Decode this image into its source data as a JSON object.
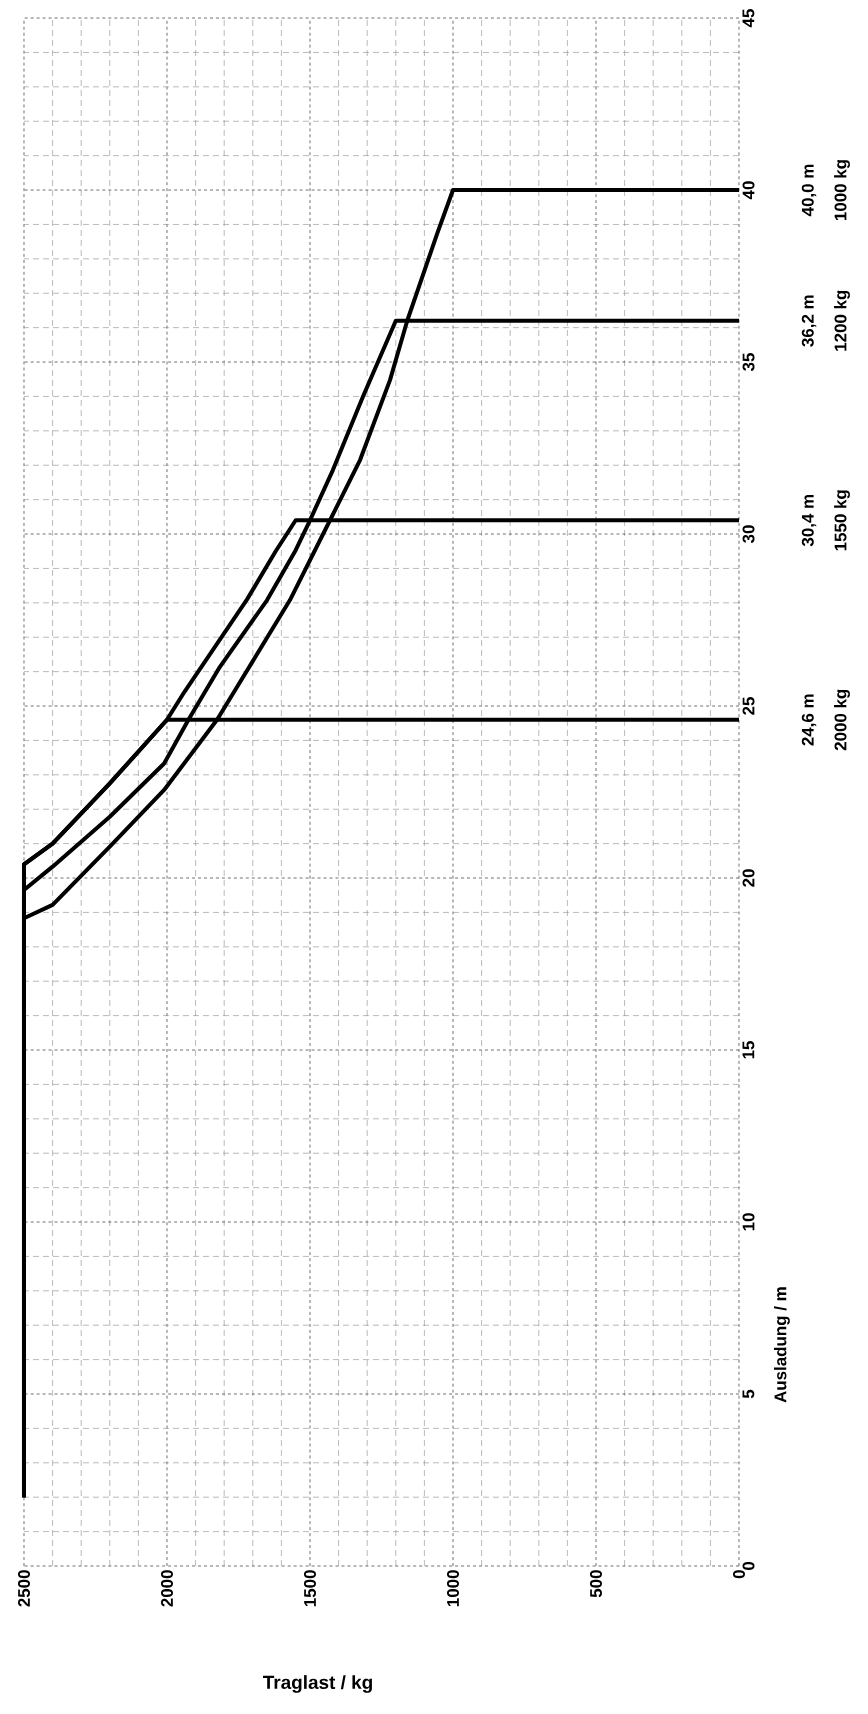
{
  "chart_data": {
    "type": "line",
    "xlabel": "Traglast / kg",
    "ylabel": "Ausladung / m",
    "xlim": [
      2500,
      0
    ],
    "xticks": [
      2500,
      2000,
      1500,
      1000,
      500,
      0
    ],
    "ylim": [
      0,
      45
    ],
    "yticks": [
      0,
      5,
      10,
      15,
      20,
      25,
      30,
      35,
      40,
      45
    ],
    "grid": true,
    "marker": "none",
    "line_style": "solid",
    "series": [
      {
        "name": "24,6 m",
        "color": "#000000",
        "values": [
          2.0,
          20.4,
          21.0,
          22.75,
          24.6,
          24.6
        ],
        "x": [
          2500,
          2500,
          2400,
          2200,
          2000,
          0
        ]
      },
      {
        "name": "30,4 m",
        "color": "#000000",
        "values": [
          2.0,
          20.4,
          21.0,
          22.75,
          24.6,
          25.4,
          28.1,
          29.5,
          30.4,
          30.4
        ],
        "x": [
          2500,
          2500,
          2400,
          2200,
          2000,
          1940,
          1720,
          1620,
          1550,
          0
        ]
      },
      {
        "name": "36,2 m",
        "color": "#000000",
        "values": [
          2.0,
          19.65,
          20.33,
          21.78,
          23.33,
          24.6,
          26.14,
          28.08,
          29.53,
          30.4,
          31.86,
          33.99,
          36.2,
          36.2
        ],
        "x": [
          2500,
          2500,
          2400,
          2200,
          2010,
          1925,
          1815,
          1650,
          1550,
          1500,
          1420,
          1315,
          1200,
          0
        ]
      },
      {
        "name": "40,0 m",
        "color": "#000000",
        "values": [
          2.0,
          18.83,
          19.22,
          20.91,
          22.56,
          24.6,
          28.08,
          30.4,
          32.15,
          34.48,
          36.2,
          38.74,
          40.0,
          40.0
        ],
        "x": [
          2500,
          2500,
          2400,
          2200,
          2010,
          1825,
          1570,
          1430,
          1325,
          1220,
          1160,
          1055,
          1000,
          0
        ]
      }
    ],
    "annotations": [
      "2000 kg",
      "1550 kg",
      "1200 kg",
      "1000 kg"
    ]
  }
}
